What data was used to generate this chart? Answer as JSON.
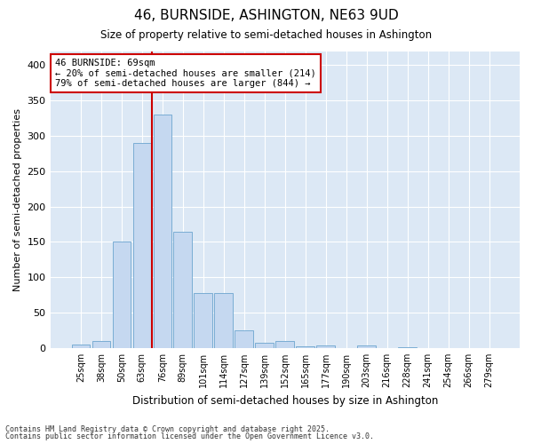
{
  "title1": "46, BURNSIDE, ASHINGTON, NE63 9UD",
  "title2": "Size of property relative to semi-detached houses in Ashington",
  "xlabel": "Distribution of semi-detached houses by size in Ashington",
  "ylabel": "Number of semi-detached properties",
  "categories": [
    "25sqm",
    "38sqm",
    "50sqm",
    "63sqm",
    "76sqm",
    "89sqm",
    "101sqm",
    "114sqm",
    "127sqm",
    "139sqm",
    "152sqm",
    "165sqm",
    "177sqm",
    "190sqm",
    "203sqm",
    "216sqm",
    "228sqm",
    "241sqm",
    "254sqm",
    "266sqm",
    "279sqm"
  ],
  "values": [
    5,
    10,
    150,
    290,
    330,
    165,
    78,
    78,
    25,
    7,
    10,
    3,
    4,
    0,
    4,
    0,
    1,
    0,
    0,
    0,
    0
  ],
  "bar_color": "#c5d8f0",
  "bar_edgecolor": "#7aadd4",
  "vline_color": "#cc0000",
  "annotation_title": "46 BURNSIDE: 69sqm",
  "annotation_line1": "← 20% of semi-detached houses are smaller (214)",
  "annotation_line2": "79% of semi-detached houses are larger (844) →",
  "annotation_box_facecolor": "white",
  "annotation_box_edgecolor": "#cc0000",
  "footnote1": "Contains HM Land Registry data © Crown copyright and database right 2025.",
  "footnote2": "Contains public sector information licensed under the Open Government Licence v3.0.",
  "fig_facecolor": "#ffffff",
  "plot_facecolor": "#dce8f5",
  "grid_color": "#ffffff",
  "ylim": [
    0,
    420
  ],
  "vline_position": 3.5,
  "yticks": [
    0,
    50,
    100,
    150,
    200,
    250,
    300,
    350,
    400
  ]
}
